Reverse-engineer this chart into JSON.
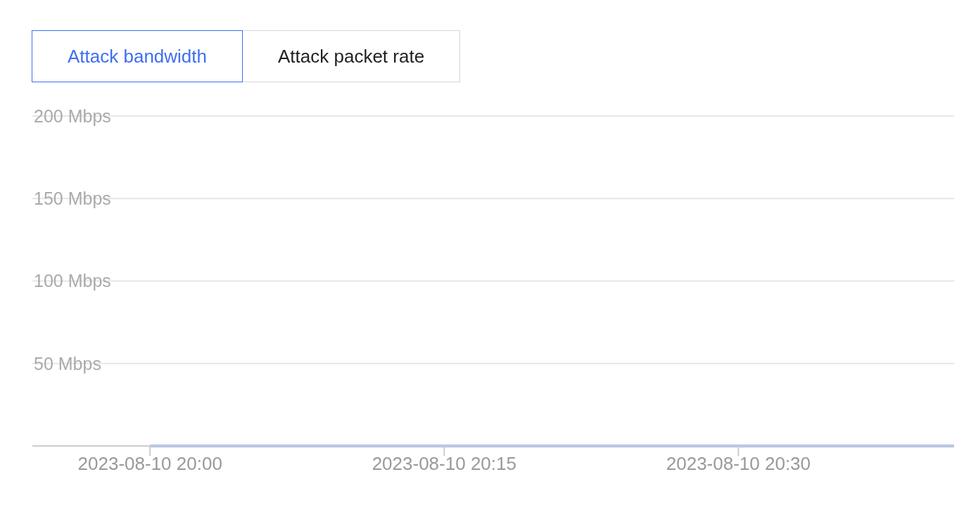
{
  "chart_data": {
    "type": "line",
    "annotations": [
      "Attack bandwidth",
      "Attack packet rate"
    ],
    "x": [
      "2023-08-10T20:00",
      "2023-08-10T20:10",
      "2023-08-10T20:20",
      "2023-08-10T20:30",
      "2023-08-10T20:41"
    ],
    "series": [
      {
        "color": "#4a74f0",
        "values": [
          0,
          0,
          0,
          0,
          0
        ]
      }
    ],
    "xlim": [
      "2023-08-10T19:54",
      "2023-08-10T20:41"
    ],
    "xticks": [
      {
        "value": "2023-08-10T20:00",
        "label": "2023-08-10 20:00"
      },
      {
        "value": "2023-08-10T20:15",
        "label": "2023-08-10 20:15"
      },
      {
        "value": "2023-08-10T20:30",
        "label": "2023-08-10 20:30"
      }
    ],
    "ylim": [
      0,
      200
    ],
    "yticks": [
      {
        "value": 0,
        "label": null
      },
      {
        "value": 50,
        "label": "50 Mbps"
      },
      {
        "value": 100,
        "label": "100 Mbps"
      },
      {
        "value": 150,
        "label": "150 Mbps"
      },
      {
        "value": 200,
        "label": "200 Mbps"
      }
    ],
    "grid": "y",
    "marker": "none",
    "line_style": "solid",
    "legend": false
  }
}
